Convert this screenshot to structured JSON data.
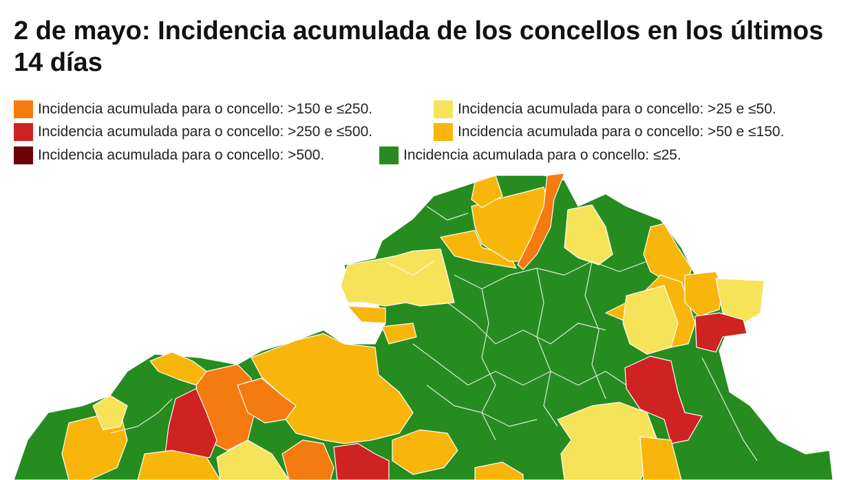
{
  "title": "2 de mayo: Incidencia acumulada de los concellos en los últimos 14 días",
  "legend": [
    {
      "label": "Incidencia acumulada para o concello: >150 e ≤250.",
      "color": "#f47b0f"
    },
    {
      "label": "Incidencia acumulada para o concello: >25 e ≤50.",
      "color": "#f7e35a"
    },
    {
      "label": "Incidencia acumulada para o concello: >250 e ≤500.",
      "color": "#cf2222"
    },
    {
      "label": "Incidencia acumulada para o concello: >50 e ≤150.",
      "color": "#f8b60c"
    },
    {
      "label": "Incidencia acumulada para o concello: >500.",
      "color": "#6b0408"
    },
    {
      "label": "Incidencia acumulada para o concello: ≤25.",
      "color": "#268c1f"
    }
  ]
}
